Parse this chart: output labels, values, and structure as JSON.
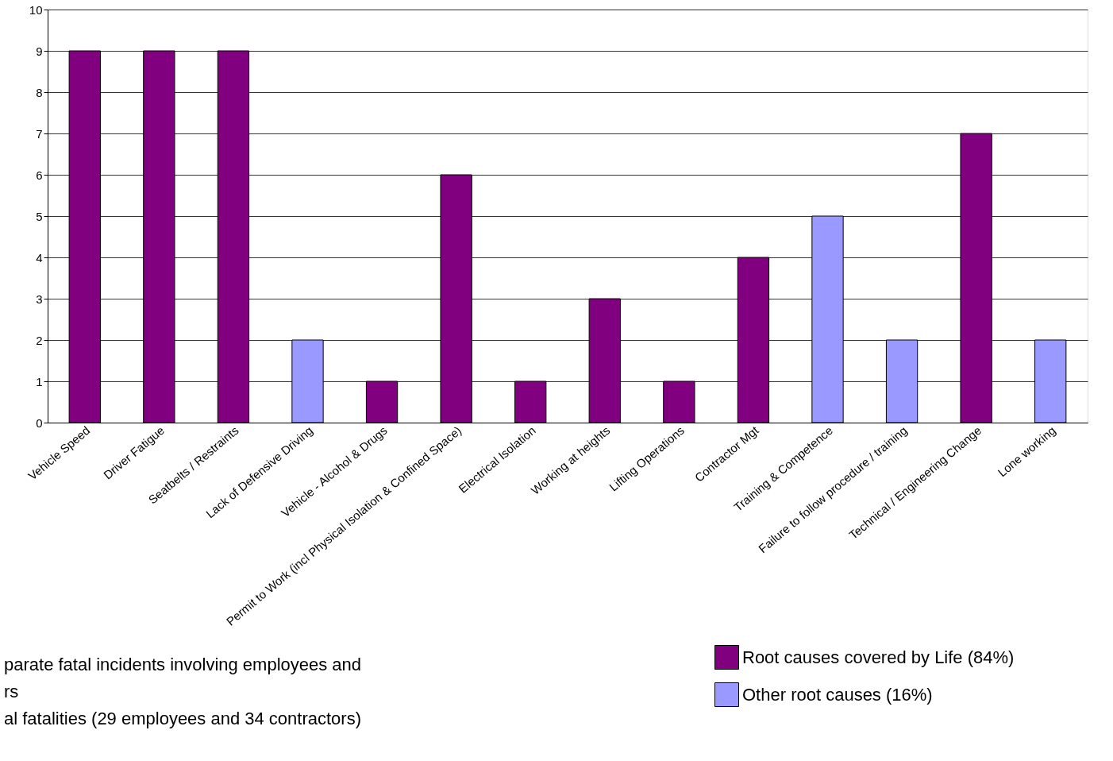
{
  "chart_data": {
    "type": "bar",
    "categories": [
      "Vehicle Speed",
      "Driver Fatigue",
      "Seatbelts / Restraints",
      "Lack of Defensive Driving",
      "Vehicle - Alcohol & Drugs",
      "Permit to Work (incl Physical Isolation & Confined Space)",
      "Electrical Isolation",
      "Working at heights",
      "Lifting Operations",
      "Contractor Mgt",
      "Training & Competence",
      "Failure to follow procedure / training",
      "Technical / Engineering Change",
      "Lone working"
    ],
    "series": [
      {
        "name": "Root causes covered by Life (84%)",
        "color": "#800080",
        "values": [
          9,
          9,
          9,
          null,
          1,
          6,
          1,
          3,
          1,
          4,
          null,
          null,
          7,
          null
        ]
      },
      {
        "name": "Other root causes (16%)",
        "color": "#9999ff",
        "values": [
          null,
          null,
          null,
          2,
          null,
          null,
          null,
          null,
          null,
          null,
          5,
          2,
          null,
          2
        ]
      }
    ],
    "ylim": [
      0,
      10
    ],
    "yticks": [
      0,
      1,
      2,
      3,
      4,
      5,
      6,
      7,
      8,
      9,
      10
    ],
    "grid": "y",
    "legend": "bottom right",
    "annotations": [
      "parate fatal incidents involving employees and",
      "rs",
      "al fatalities (29 employees and 34 contractors)"
    ]
  }
}
